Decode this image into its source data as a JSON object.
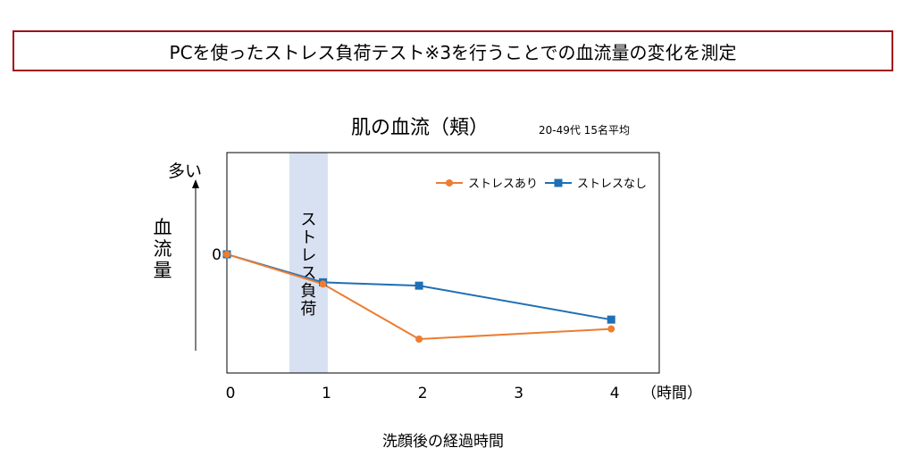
{
  "header": {
    "title": "PCを使ったストレス負荷テスト※3を行うことでの血流量の変化を測定"
  },
  "colors": {
    "frame_border": "#a10f1a",
    "stress_line": "#ed7d31",
    "no_stress_line": "#1f6fb5",
    "stress_band": "#d8e1f1"
  },
  "chart_data": {
    "type": "line",
    "title": "肌の血流（頬）",
    "subtitle": "20-49代 15名平均",
    "x": [
      0,
      1,
      2,
      4
    ],
    "xticks": [
      "0",
      "1",
      "2",
      "3",
      "4"
    ],
    "xlim": [
      0,
      4.5
    ],
    "x_unit": "（時間）",
    "xlabel": "洗顔後の経過時間",
    "ylabel": "血流量",
    "y_more_label": "多い",
    "y_zero_label": "0",
    "ylim": [
      -1.4,
      1.2
    ],
    "band": {
      "from": 0.65,
      "to": 1.05,
      "label": "ストレス負荷"
    },
    "legend_position": "top-right",
    "series": [
      {
        "name": "ストレスあり",
        "values": [
          0,
          -0.35,
          -1.0,
          -0.88
        ]
      },
      {
        "name": "ストレスなし",
        "values": [
          0,
          -0.33,
          -0.37,
          -0.77
        ]
      }
    ]
  }
}
